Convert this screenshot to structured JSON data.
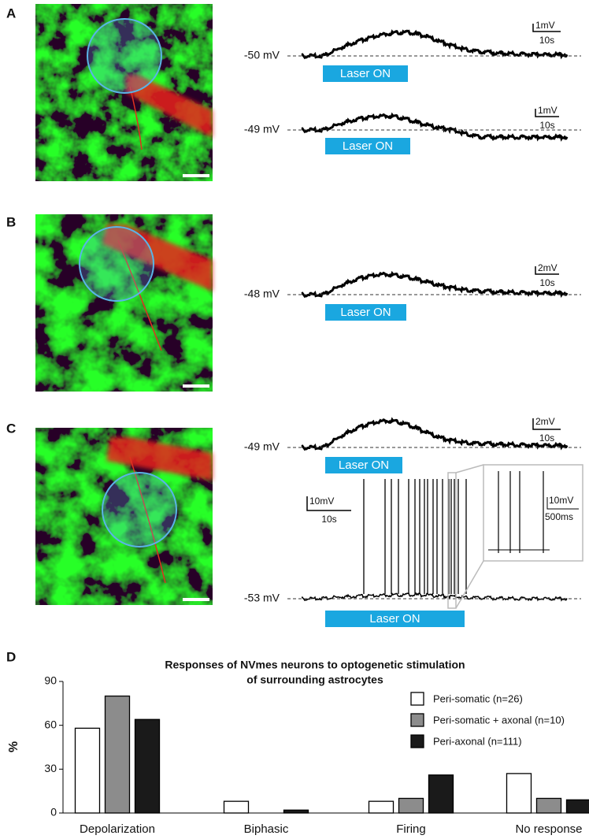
{
  "panels": [
    {
      "label": "A",
      "traces": [
        {
          "potential": "-50 mV",
          "stimulus": "Laser ON",
          "scale_v": "1mV",
          "scale_t": "10s"
        },
        {
          "potential": "-49 mV",
          "stimulus": "Laser ON",
          "scale_v": "1mV",
          "scale_t": "10s"
        }
      ]
    },
    {
      "label": "B",
      "traces": [
        {
          "potential": "-48 mV",
          "stimulus": "Laser ON",
          "scale_v": "2mV",
          "scale_t": "10s"
        }
      ]
    },
    {
      "label": "C",
      "traces": [
        {
          "potential": "-49 mV",
          "stimulus": "Laser ON",
          "scale_v": "2mV",
          "scale_t": "10s"
        },
        {
          "potential": "-53 mV",
          "stimulus": "Laser ON",
          "scale_v": "10mV",
          "scale_t": "10s",
          "inset_scale_v": "10mV",
          "inset_scale_t": "500ms"
        }
      ]
    },
    {
      "label": "D"
    }
  ],
  "chart_data": {
    "type": "bar",
    "title": [
      "Responses of NVmes neurons to optogenetic stimulation",
      "of surrounding astrocytes"
    ],
    "y_label": "%",
    "categories": [
      "Depolarization",
      "Biphasic",
      "Firing",
      "No response"
    ],
    "series": [
      {
        "name": "Peri-somatic (n=26)",
        "color": "#ffffff",
        "values": [
          58,
          8,
          8,
          27
        ]
      },
      {
        "name": "Peri-somatic + axonal (n=10)",
        "color": "#8c8c8c",
        "values": [
          80,
          0,
          10,
          10
        ]
      },
      {
        "name": "Peri-axonal (n=111)",
        "color": "#1a1a1a",
        "values": [
          64,
          2,
          26,
          9
        ]
      }
    ],
    "ylim": [
      0,
      90
    ],
    "yticks": [
      0,
      30,
      60,
      90
    ],
    "legend": "upper right"
  }
}
